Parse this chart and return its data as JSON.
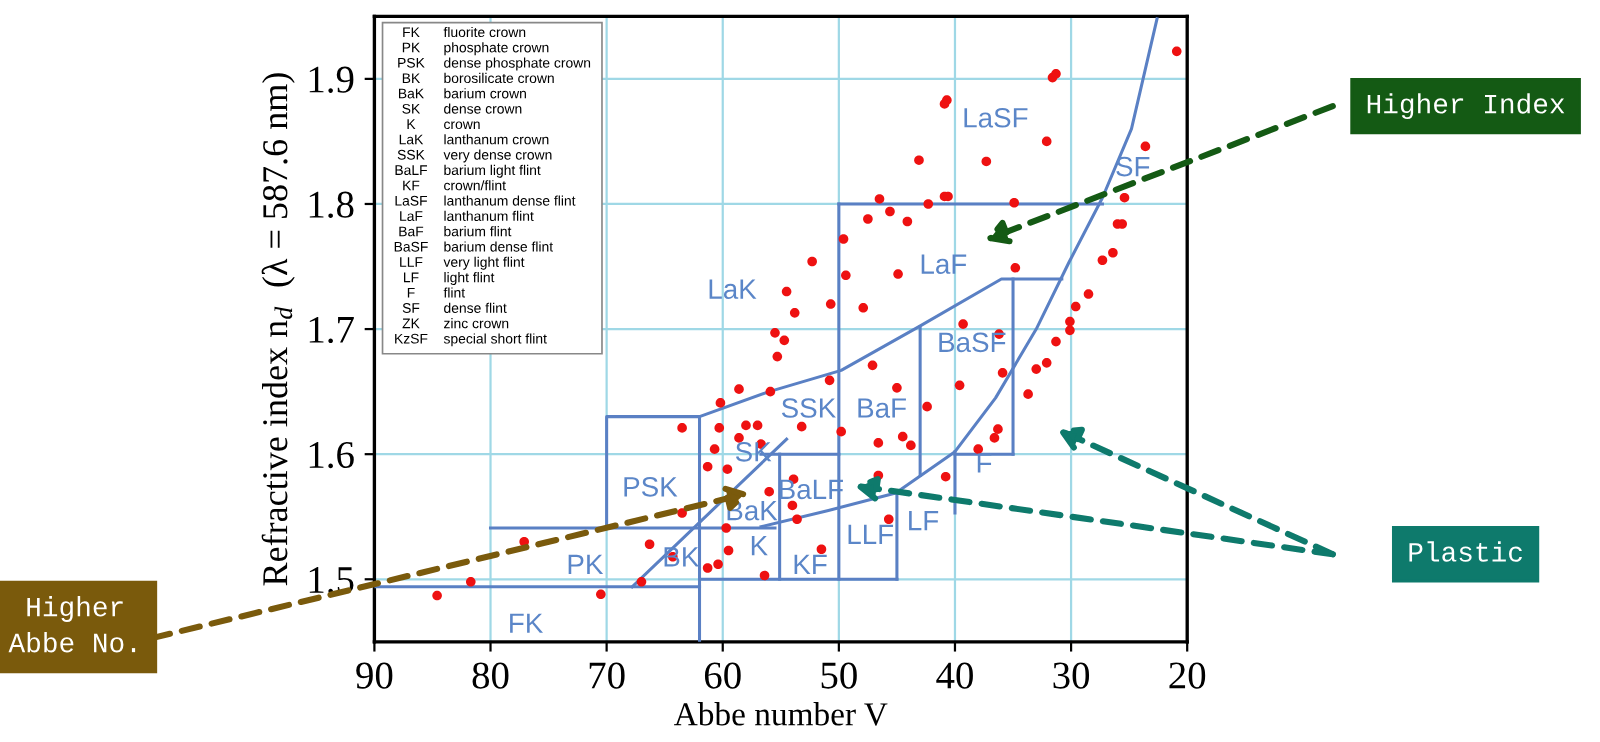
{
  "chart_data": {
    "type": "scatter",
    "xlabel": "Abbe number V",
    "ylabel": "Refractive index n$_{d}$  (λ = 587.6 nm)",
    "xlim": [
      90,
      20
    ],
    "ylim": [
      1.45,
      1.95
    ],
    "xticks": [
      90,
      80,
      70,
      60,
      50,
      40,
      30,
      20
    ],
    "yticks": [
      1.5,
      1.6,
      1.7,
      1.8,
      1.9
    ],
    "grid": true,
    "series": [
      {
        "color": "#ee1111",
        "x": [
          20.9,
          31.6,
          31.3,
          40.7,
          40.9,
          32.1,
          23.6,
          43.1,
          37.3,
          46.5,
          40.9,
          40.6,
          42.3,
          34.9,
          25.4,
          47.5,
          45.6,
          44.1,
          49.6,
          26.0,
          25.6,
          52.3,
          27.3,
          26.4,
          49.4,
          44.9,
          34.8,
          54.5,
          28.5,
          50.7,
          53.8,
          47.9,
          29.6,
          39.3,
          30.1,
          30.1,
          36.2,
          55.5,
          54.7,
          55.3,
          31.3,
          32.1,
          33.0,
          35.9,
          47.1,
          50.8,
          58.6,
          55.9,
          45.0,
          39.6,
          60.2,
          63.5,
          60.3,
          58.0,
          57.0,
          58.6,
          56.7,
          60.7,
          61.3,
          59.6,
          56.0,
          63.5,
          77.1,
          66.3,
          64.3,
          59.7,
          59.5,
          60.4,
          61.3,
          56.4,
          67.0,
          81.7,
          84.6,
          70.5,
          42.4,
          33.7,
          53.2,
          49.8,
          46.6,
          44.5,
          43.8,
          36.3,
          36.6,
          38.0,
          46.6,
          40.8,
          53.9,
          54.0,
          53.6,
          45.7,
          51.5
        ],
        "values": [
          1.922,
          1.901,
          1.904,
          1.883,
          1.88,
          1.85,
          1.846,
          1.835,
          1.834,
          1.804,
          1.806,
          1.806,
          1.8,
          1.801,
          1.805,
          1.788,
          1.794,
          1.786,
          1.772,
          1.784,
          1.784,
          1.754,
          1.755,
          1.761,
          1.743,
          1.744,
          1.749,
          1.73,
          1.728,
          1.72,
          1.713,
          1.717,
          1.718,
          1.704,
          1.706,
          1.699,
          1.696,
          1.697,
          1.691,
          1.678,
          1.69,
          1.673,
          1.668,
          1.665,
          1.671,
          1.659,
          1.652,
          1.65,
          1.653,
          1.655,
          1.641,
          1.621,
          1.621,
          1.623,
          1.623,
          1.613,
          1.608,
          1.604,
          1.59,
          1.588,
          1.57,
          1.553,
          1.53,
          1.528,
          1.518,
          1.541,
          1.523,
          1.512,
          1.509,
          1.503,
          1.498,
          1.498,
          1.487,
          1.488,
          1.638,
          1.648,
          1.622,
          1.618,
          1.609,
          1.614,
          1.607,
          1.62,
          1.613,
          1.604,
          1.583,
          1.582,
          1.58,
          1.559,
          1.548,
          1.548,
          1.524
        ]
      },
      {
        "type": "line",
        "color": "#5a80c4",
        "x": [
          90,
          62
        ],
        "values": [
          1.494,
          1.494
        ]
      },
      {
        "type": "line",
        "color": "#5a80c4",
        "x": [
          80,
          55.5
        ],
        "values": [
          1.541,
          1.541
        ]
      },
      {
        "type": "line",
        "color": "#5a80c4",
        "x": [
          62,
          62
        ],
        "values": [
          1.45,
          1.63
        ]
      },
      {
        "type": "line",
        "color": "#5a80c4",
        "x": [
          67.8,
          54.5
        ],
        "values": [
          1.494,
          1.612
        ]
      },
      {
        "type": "line",
        "color": "#5a80c4",
        "x": [
          70,
          70,
          62,
          56,
          49.8,
          43.1,
          36,
          30.8
        ],
        "values": [
          1.541,
          1.63,
          1.63,
          1.65,
          1.667,
          1.702,
          1.74,
          1.74
        ]
      },
      {
        "type": "line",
        "color": "#5a80c4",
        "x": [
          56.7,
          50.9,
          45.1,
          40,
          36.5,
          33,
          30.2,
          27.3,
          24.8,
          22.6
        ],
        "values": [
          1.542,
          1.555,
          1.569,
          1.602,
          1.645,
          1.7,
          1.753,
          1.805,
          1.86,
          1.948
        ]
      },
      {
        "type": "line",
        "color": "#5a80c4",
        "x": [
          50,
          27.3
        ],
        "values": [
          1.8,
          1.8
        ]
      },
      {
        "type": "line",
        "color": "#5a80c4",
        "x": [
          50,
          50
        ],
        "values": [
          1.8,
          1.5
        ]
      },
      {
        "type": "line",
        "color": "#5a80c4",
        "x": [
          43,
          43
        ],
        "values": [
          1.702,
          1.583
        ]
      },
      {
        "type": "line",
        "color": "#5a80c4",
        "x": [
          45,
          45
        ],
        "values": [
          1.569,
          1.5
        ]
      },
      {
        "type": "line",
        "color": "#5a80c4",
        "x": [
          40,
          40
        ],
        "values": [
          1.602,
          1.553
        ]
      },
      {
        "type": "line",
        "color": "#5a80c4",
        "x": [
          35,
          35
        ],
        "values": [
          1.74,
          1.6
        ]
      },
      {
        "type": "line",
        "color": "#5a80c4",
        "x": [
          56.7,
          50
        ],
        "values": [
          1.6,
          1.6
        ]
      },
      {
        "type": "line",
        "color": "#5a80c4",
        "x": [
          40,
          35
        ],
        "values": [
          1.6,
          1.6
        ]
      },
      {
        "type": "line",
        "color": "#5a80c4",
        "x": [
          55.1,
          55.1
        ],
        "values": [
          1.6,
          1.5
        ]
      },
      {
        "type": "line",
        "color": "#5a80c4",
        "x": [
          62,
          45
        ],
        "values": [
          1.5,
          1.5
        ]
      }
    ],
    "annotations": [
      "FK fluorite crown",
      "PK phosphate crown",
      "PSK dense phosphate crown",
      "BK borosilicate crown",
      "BaK barium crown",
      "SK dense crown",
      "K crown",
      "LaK lanthanum crown",
      "SSK very dense crown",
      "BaLF barium light flint",
      "KF crown/flint",
      "LaSF lanthanum dense flint",
      "LaF lanthanum flint",
      "BaF barium flint",
      "BaSF barium dense flint",
      "LLF very light flint",
      "LF light flint",
      "F flint",
      "SF dense flint",
      "ZK zinc crown",
      "KzSF special short flint",
      "FK",
      "PK",
      "PSK",
      "BK",
      "SK",
      "BaK",
      "K",
      "LaK",
      "SSK",
      "BaF",
      "BaSF",
      "LaF",
      "LaSF",
      "SF",
      "F",
      "LLF",
      "LF",
      "KF",
      "BaLF",
      "Higher Index",
      "Plastic",
      "Higher\nAbbe No."
    ]
  }
}
